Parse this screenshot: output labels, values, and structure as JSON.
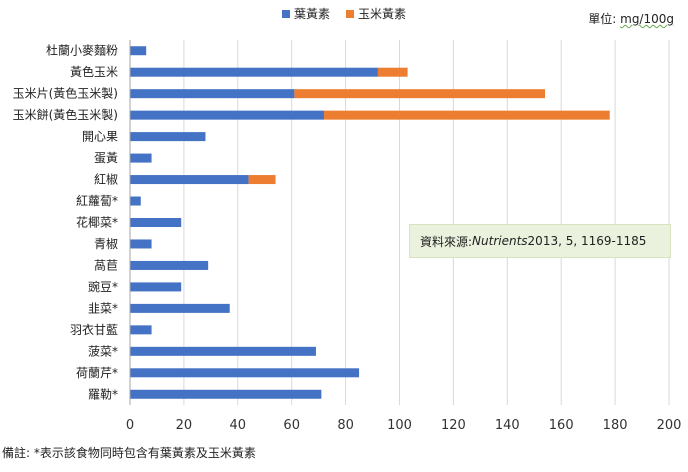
{
  "legend": {
    "series1": "葉黃素",
    "series2": "玉米黃素"
  },
  "unit": {
    "prefix": "單位: ",
    "value": "mg/100g"
  },
  "source": {
    "label": "資料來源:",
    "journal": "Nutrients",
    "citation": " 2013, 5, 1169-1185"
  },
  "footnote": "備註: *表示該食物同時包含有葉黃素及玉米黃素",
  "colors": {
    "lutein": "#4472c4",
    "zeaxanthin": "#ed7d31",
    "grid": "#d9d9d9",
    "axis": "#a6a6a6"
  },
  "chart_data": {
    "type": "bar",
    "orientation": "horizontal",
    "stacked": true,
    "categories": [
      "杜蘭小麥麵粉",
      "黃色玉米",
      "玉米片(黃色玉米製)",
      "玉米餅(黃色玉米製)",
      "開心果",
      "蛋黃",
      "紅椒",
      "紅蘿蔔*",
      "花椰菜*",
      "青椒",
      "萵苣",
      "豌豆*",
      "韭菜*",
      "羽衣甘藍",
      "菠菜*",
      "荷蘭芹*",
      "羅勒*"
    ],
    "series": [
      {
        "name": "葉黃素",
        "values": [
          6,
          92,
          61,
          72,
          28,
          8,
          44,
          4,
          19,
          8,
          29,
          19,
          37,
          8,
          69,
          85,
          71
        ]
      },
      {
        "name": "玉米黃素",
        "values": [
          0,
          11,
          93,
          106,
          0,
          0,
          10,
          0,
          0,
          0,
          0,
          0,
          0,
          0,
          0,
          0,
          0
        ]
      }
    ],
    "xlim": [
      0,
      200
    ],
    "xticks": [
      "0",
      "20",
      "40",
      "60",
      "80",
      "100",
      "120",
      "140",
      "160",
      "180",
      "200"
    ],
    "grid": true,
    "legend_position": "top"
  }
}
